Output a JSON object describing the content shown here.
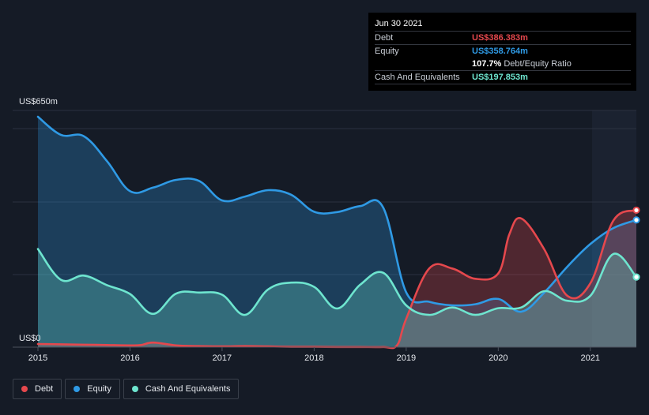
{
  "tooltip": {
    "date": "Jun 30 2021",
    "rows": [
      {
        "label": "Debt",
        "value": "US$386.383m",
        "color": "#e5484d"
      },
      {
        "label": "Equity",
        "value": "US$358.764m",
        "color": "#2f9ae5"
      },
      {
        "ratio_value": "107.7%",
        "ratio_label": "Debt/Equity Ratio"
      },
      {
        "label": "Cash And Equivalents",
        "value": "US$197.853m",
        "color": "#6ee5cf"
      }
    ]
  },
  "legend": [
    {
      "label": "Debt",
      "color": "#e5484d"
    },
    {
      "label": "Equity",
      "color": "#2f9ae5"
    },
    {
      "label": "Cash And Equivalents",
      "color": "#6ee5cf"
    }
  ],
  "chart_data": {
    "type": "area",
    "ylim": [
      0,
      650
    ],
    "y_top_label": "US$650m",
    "y_bottom_label": "US$0",
    "xlim": [
      2015.0,
      2021.5
    ],
    "x_ticks": [
      {
        "value": 2015,
        "label": "2015"
      },
      {
        "value": 2016,
        "label": "2016"
      },
      {
        "value": 2017,
        "label": "2017"
      },
      {
        "value": 2018,
        "label": "2018"
      },
      {
        "value": 2019,
        "label": "2019"
      },
      {
        "value": 2020,
        "label": "2020"
      },
      {
        "value": 2021,
        "label": "2021"
      }
    ],
    "grid": true,
    "legend_position": "bottom-left",
    "series": [
      {
        "name": "Debt",
        "color": "#e5484d",
        "points": [
          [
            2015.0,
            9
          ],
          [
            2015.25,
            8
          ],
          [
            2015.5,
            7
          ],
          [
            2015.75,
            6
          ],
          [
            2016.0,
            5
          ],
          [
            2016.12,
            6
          ],
          [
            2016.25,
            13
          ],
          [
            2016.5,
            5
          ],
          [
            2016.75,
            3
          ],
          [
            2017.0,
            2
          ],
          [
            2017.25,
            3
          ],
          [
            2017.5,
            2
          ],
          [
            2017.75,
            1
          ],
          [
            2018.0,
            1
          ],
          [
            2018.25,
            0.5
          ],
          [
            2018.5,
            0.5
          ],
          [
            2018.75,
            0.5
          ],
          [
            2018.9,
            5
          ],
          [
            2019.0,
            80
          ],
          [
            2019.25,
            222
          ],
          [
            2019.5,
            222
          ],
          [
            2019.75,
            193
          ],
          [
            2020.0,
            208
          ],
          [
            2020.12,
            318
          ],
          [
            2020.25,
            363
          ],
          [
            2020.5,
            276
          ],
          [
            2020.75,
            145
          ],
          [
            2021.0,
            180
          ],
          [
            2021.25,
            357
          ],
          [
            2021.5,
            386.383
          ]
        ]
      },
      {
        "name": "Equity",
        "color": "#2f9ae5",
        "points": [
          [
            2015.0,
            650
          ],
          [
            2015.25,
            599
          ],
          [
            2015.5,
            595
          ],
          [
            2015.75,
            525
          ],
          [
            2016.0,
            440
          ],
          [
            2016.25,
            450
          ],
          [
            2016.5,
            472
          ],
          [
            2016.75,
            469
          ],
          [
            2017.0,
            414
          ],
          [
            2017.25,
            425
          ],
          [
            2017.5,
            443
          ],
          [
            2017.75,
            430
          ],
          [
            2018.0,
            382
          ],
          [
            2018.25,
            381
          ],
          [
            2018.5,
            398
          ],
          [
            2018.75,
            394
          ],
          [
            2019.0,
            155
          ],
          [
            2019.25,
            128
          ],
          [
            2019.5,
            118
          ],
          [
            2019.75,
            121
          ],
          [
            2020.0,
            136
          ],
          [
            2020.25,
            100
          ],
          [
            2020.5,
            154
          ],
          [
            2020.75,
            227
          ],
          [
            2021.0,
            291
          ],
          [
            2021.25,
            336
          ],
          [
            2021.5,
            358.764
          ]
        ]
      },
      {
        "name": "Cash And Equivalents",
        "color": "#6ee5cf",
        "points": [
          [
            2015.0,
            277
          ],
          [
            2015.25,
            190
          ],
          [
            2015.5,
            202
          ],
          [
            2015.75,
            175
          ],
          [
            2016.0,
            150
          ],
          [
            2016.25,
            94
          ],
          [
            2016.5,
            151
          ],
          [
            2016.75,
            154
          ],
          [
            2017.0,
            148
          ],
          [
            2017.25,
            91
          ],
          [
            2017.5,
            163
          ],
          [
            2017.75,
            182
          ],
          [
            2018.0,
            170
          ],
          [
            2018.25,
            109
          ],
          [
            2018.5,
            176
          ],
          [
            2018.75,
            210
          ],
          [
            2019.0,
            118
          ],
          [
            2019.25,
            91
          ],
          [
            2019.5,
            112
          ],
          [
            2019.75,
            91
          ],
          [
            2020.0,
            110
          ],
          [
            2020.25,
            112
          ],
          [
            2020.5,
            158
          ],
          [
            2020.75,
            131
          ],
          [
            2021.0,
            145
          ],
          [
            2021.25,
            263
          ],
          [
            2021.5,
            197.853
          ]
        ]
      }
    ]
  }
}
